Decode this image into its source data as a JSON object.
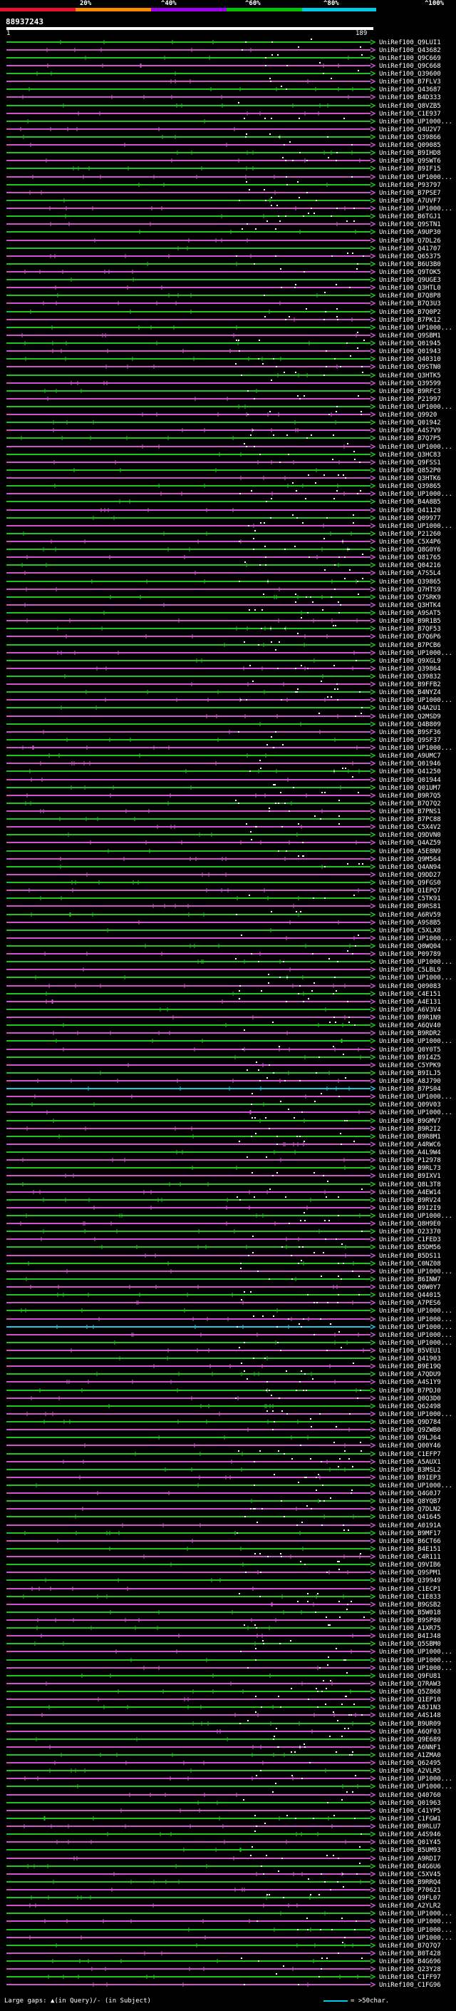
{
  "legend": {
    "labels": [
      "20%",
      "^40%",
      "^60%",
      "^80%",
      "^100%"
    ],
    "colors": [
      "#e8102a",
      "#ff8a00",
      "#a000f0",
      "#00c000",
      "#00c8e6"
    ]
  },
  "query": {
    "id": "88937243",
    "start": "1",
    "end": "189"
  },
  "colors": {
    "green": "#1fc41f",
    "magenta": "#cc55cc",
    "cyan": "#22c6e0",
    "white": "#ffffff"
  },
  "hits": [
    "UniRef100_Q9LUI1",
    "UniRef100_Q43682",
    "UniRef100_Q9C669",
    "UniRef100_Q9C668",
    "UniRef100_Q39600",
    "UniRef100_B7FLV3",
    "UniRef100_Q43687",
    "UniRef100_B4D333",
    "UniRef100_Q8VZB5",
    "UniRef100_C1E937",
    "UniRef100_UP1000...",
    "UniRef100_Q4U2V7",
    "UniRef100_Q39866",
    "UniRef100_Q09085",
    "UniRef100_B9IHD8",
    "UniRef100_Q9SWT6",
    "UniRef100_B9IF15",
    "UniRef100_UP1000...",
    "UniRef100_P93797",
    "UniRef100_B7PSE7",
    "UniRef100_A7UVF7",
    "UniRef100_UP1000...",
    "UniRef100_B6TGJ1",
    "UniRef100_Q9STN1",
    "UniRef100_A9UP30",
    "UniRef100_Q7DL26",
    "UniRef100_Q41707",
    "UniRef100_Q65375",
    "UniRef100_B6U3B0",
    "UniRef100_Q9TOK5",
    "UniRef100_Q9UGE3",
    "UniRef100_Q3HTL0",
    "UniRef100_B7Q8P8",
    "UniRef100_B7Q3U3",
    "UniRef100_B7Q0P2",
    "UniRef100_B7PK12",
    "UniRef100_UP1000...",
    "UniRef100_Q9SBM1",
    "UniRef100_Q01945",
    "UniRef100_Q01943",
    "UniRef100_Q40310",
    "UniRef100_Q9STN0",
    "UniRef100_Q3HTK5",
    "UniRef100_Q39599",
    "UniRef100_B9RFC3",
    "UniRef100_P21997",
    "UniRef100_UP1000...",
    "UniRef100_Q9920",
    "UniRef100_Q01942",
    "UniRef100_A4S7V9",
    "UniRef100_B7Q7P5",
    "UniRef100_UP1000...",
    "UniRef100_Q3HC83",
    "UniRef100_Q9FSS1",
    "UniRef100_Q852P0",
    "UniRef100_Q3HTK6",
    "UniRef100_Q39865",
    "UniRef100_UP1000...",
    "UniRef100_B4A8B5",
    "UniRef100_Q41120",
    "UniRef100_Q09977",
    "UniRef100_UP1000...",
    "UniRef100_P21260",
    "UniRef100_C5X4P6",
    "UniRef100_Q8G0Y6",
    "UniRef100_O81765",
    "UniRef100_Q04216",
    "UniRef100_A7S5L4",
    "UniRef100_Q39865",
    "UniRef100_Q7HTS9",
    "UniRef100_Q7SRK9",
    "UniRef100_Q3HTK4",
    "UniRef100_A9SAT5",
    "UniRef100_B9R1B5",
    "UniRef100_B7QF53",
    "UniRef100_B7Q6P6",
    "UniRef100_B7PCB6",
    "UniRef100_UP1000...",
    "UniRef100_Q9XGL9",
    "UniRef100_Q39864",
    "UniRef100_Q39832",
    "UniRef100_B9FFB2",
    "UniRef100_B4NYZ4",
    "UniRef100_UP1000...",
    "UniRef100_Q4A2U1",
    "UniRef100_Q2MSD9",
    "UniRef100_Q4B809",
    "UniRef100_B9SF36",
    "UniRef100_Q9SF37",
    "UniRef100_UP1000...",
    "UniRef100_A9UMC7",
    "UniRef100_Q01946",
    "UniRef100_Q41250",
    "UniRef100_Q01944",
    "UniRef100_Q01UM7",
    "UniRef100_B9R7Q5",
    "UniRef100_B7Q7Q2",
    "UniRef100_B7PNS1",
    "UniRef100_B7PC88",
    "UniRef100_C5X4V2",
    "UniRef100_Q9DVN0",
    "UniRef100_Q4AZ59",
    "UniRef100_A5E8N9",
    "UniRef100_Q9M564",
    "UniRef100_Q4AN94",
    "UniRef100_Q9DD27",
    "UniRef100_Q9FGS0",
    "UniRef100_Q1EPQ7",
    "UniRef100_C5TK91",
    "UniRef100_B9RS81",
    "UniRef100_A6RV59",
    "UniRef100_A9S8B5",
    "UniRef100_C5XLX8",
    "UniRef100_UP1000...",
    "UniRef100_Q0WQ04",
    "UniRef100_P09789",
    "UniRef100_UP1000...",
    "UniRef100_C5LBL9",
    "UniRef100_UP1000...",
    "UniRef100_Q09083",
    "UniRef100_C4E151",
    "UniRef100_A4E131",
    "UniRef100_A6V3V4",
    "UniRef100_B9R1N9",
    "UniRef100_A6QV40",
    "UniRef100_B9RDR2",
    "UniRef100_UP1000...",
    "UniRef100_Q0Y0T5",
    "UniRef100_B9I4Z5",
    "UniRef100_C5YPK9",
    "UniRef100_B9ILJ5",
    "UniRef100_A8J790",
    "UniRef100_B7PS04",
    "UniRef100_UP1000...",
    "UniRef100_Q09V03",
    "UniRef100_UP1000...",
    "UniRef100_B9GMV7",
    "UniRef100_B9R2I2",
    "UniRef100_B9R8M1",
    "UniRef100_A4RWC6",
    "UniRef100_A4L9W4",
    "UniRef100_P12978",
    "UniRef100_B9RL73",
    "UniRef100_B9IXV1",
    "UniRef100_Q8L3T8",
    "UniRef100_A4EW14",
    "UniRef100_B9RV24",
    "UniRef100_B9I2I9",
    "UniRef100_UP1000...",
    "UniRef100_Q8H9E0",
    "UniRef100_O23370",
    "UniRef100_C1FED3",
    "UniRef100_B5DM56",
    "UniRef100_B5DS11",
    "UniRef100_C0NZ08",
    "UniRef100_UP1000...",
    "UniRef100_B6INW7",
    "UniRef100_Q0W0Y7",
    "UniRef100_Q44015",
    "UniRef100_A7PES6",
    "UniRef100_UP1000...",
    "UniRef100_UP1000...",
    "UniRef100_UP1000...",
    "UniRef100_UP1000...",
    "UniRef100_UP1000...",
    "UniRef100_B5VEU1",
    "UniRef100_Q41903",
    "UniRef100_B9E19Q",
    "UniRef100_A7QDU9",
    "UniRef100_A4S1Y9",
    "UniRef100_B7PDJ0",
    "UniRef100_Q0Q3D0",
    "UniRef100_Q62498",
    "UniRef100_UP1000...",
    "UniRef100_Q9D784",
    "UniRef100_Q9ZWB0",
    "UniRef100_Q9LJ64",
    "UniRef100_Q00Y46",
    "UniRef100_C1EFP7",
    "UniRef100_A5AUX1",
    "UniRef100_B3MSL2",
    "UniRef100_B9IEP3",
    "UniRef100_UP1000...",
    "UniRef100_Q4G0J7",
    "UniRef100_Q8YQB7",
    "UniRef100_Q7DLN2",
    "UniRef100_Q41645",
    "UniRef100_A0191A",
    "UniRef100_B9MF17",
    "UniRef100_B6CT66",
    "UniRef100_B4E151",
    "UniRef100_C4R111",
    "UniRef100_Q9VIB6",
    "UniRef100_Q9SPM1",
    "UniRef100_Q39949",
    "UniRef100_C1ECP1",
    "UniRef100_C1E833",
    "UniRef100_B9GSB2",
    "UniRef100_B5W018",
    "UniRef100_B9SP80",
    "UniRef100_A1XR75",
    "UniRef100_B4IJ48",
    "UniRef100_Q5SBM0",
    "UniRef100_UP1000...",
    "UniRef100_UP1000...",
    "UniRef100_UP1000...",
    "UniRef100_Q9FU81",
    "UniRef100_Q7RAW3",
    "UniRef100_Q5Z868",
    "UniRef100_Q1EP10",
    "UniRef100_A8J1N3",
    "UniRef100_A4S148",
    "UniRef100_B9UR09",
    "UniRef100_A6QF03",
    "UniRef100_Q9E689",
    "UniRef100_A6NNF1",
    "UniRef100_A1ZMA0",
    "UniRef100_Q62495",
    "UniRef100_A2VLR5",
    "UniRef100_UP1000...",
    "UniRef100_UP1000...",
    "UniRef100_Q40760",
    "UniRef100_Q01963",
    "UniRef100_C41YP5",
    "UniRef100_C1FGW1",
    "UniRef100_B9RLU7",
    "UniRef100_A4S946",
    "UniRef100_Q01Y45",
    "UniRef100_B5UM93",
    "UniRef100_A9RDI7",
    "UniRef100_B4G6U6",
    "UniRef100_C5XV45",
    "UniRef100_B9RRQ4",
    "UniRef100_P70621",
    "UniRef100_Q9FL07",
    "UniRef100_A2YLR2",
    "UniRef100_UP1000...",
    "UniRef100_UP1000...",
    "UniRef100_UP1000...",
    "UniRef100_UP1000...",
    "UniRef100_B7Q7Q7",
    "UniRef100_B0T428",
    "UniRef100_B4G696",
    "UniRef100_Q23Y28",
    "UniRef100_C1FF97",
    "UniRef100_C1FG96"
  ],
  "footer": {
    "gaps_text": "Large gaps: ▲(in Query)/- (in Subject)",
    "over_text": "= >50char."
  }
}
